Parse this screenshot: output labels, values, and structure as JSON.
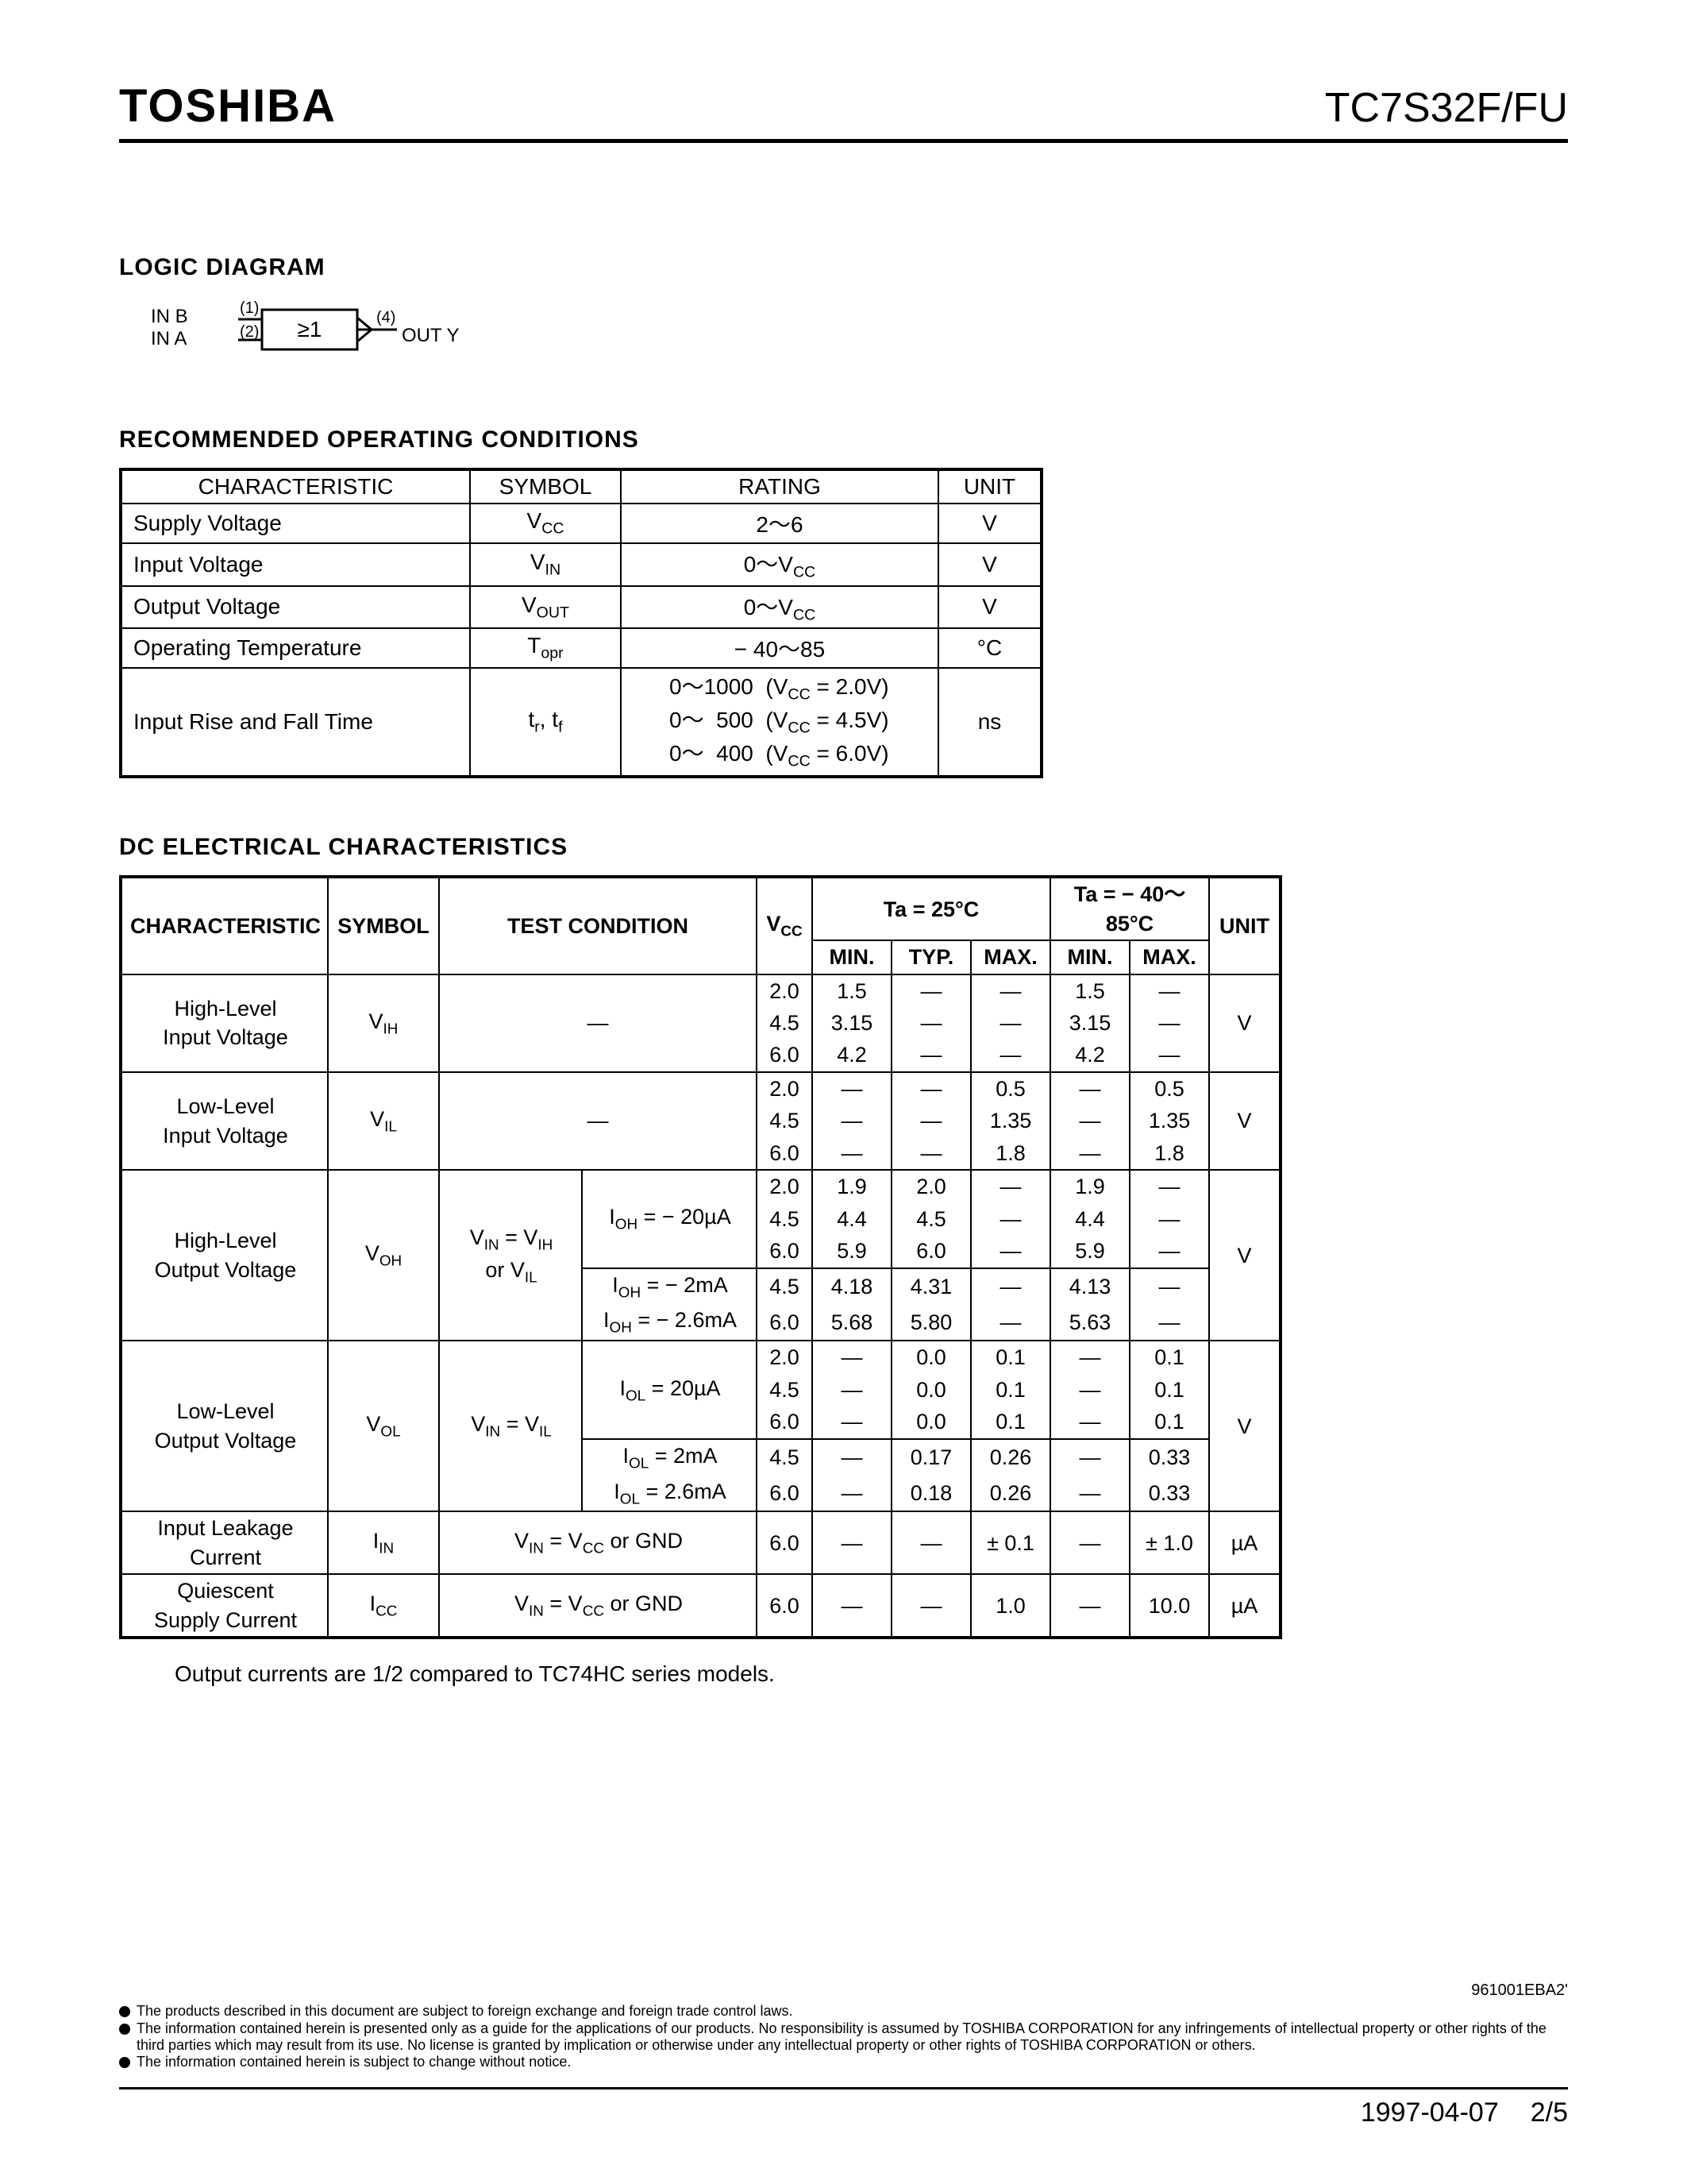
{
  "header": {
    "brand": "TOSHIBA",
    "part": "TC7S32F/FU"
  },
  "logic": {
    "title": "LOGIC  DIAGRAM",
    "in_b": "IN B",
    "in_a": "IN A",
    "pin1": "(1)",
    "pin2": "(2)",
    "pin4": "(4)",
    "gate": "≥1",
    "out": "OUT Y"
  },
  "roc": {
    "title": "RECOMMENDED  OPERATING  CONDITIONS",
    "head": {
      "char": "CHARACTERISTIC",
      "sym": "SYMBOL",
      "rat": "RATING",
      "unit": "UNIT"
    },
    "rows": [
      {
        "char": "Supply Voltage",
        "sym": "V<sub>CC</sub>",
        "rat": "2～6",
        "unit": "V"
      },
      {
        "char": "Input Voltage",
        "sym": "V<sub>IN</sub>",
        "rat": "0～V<sub>CC</sub>",
        "unit": "V"
      },
      {
        "char": "Output Voltage",
        "sym": "V<sub>OUT</sub>",
        "rat": "0～V<sub>CC</sub>",
        "unit": "V"
      },
      {
        "char": "Operating Temperature",
        "sym": "T<sub>opr</sub>",
        "rat": "− 40～85",
        "unit": "°C"
      }
    ],
    "rise_fall": {
      "char": "Input Rise and Fall Time",
      "sym": "t<sub>r</sub>, t<sub>f</sub>",
      "lines": [
        "0～1000&nbsp;&nbsp;(V<sub>CC</sub> = 2.0V)",
        "0～&nbsp;&nbsp;500&nbsp;&nbsp;(V<sub>CC</sub> = 4.5V)",
        "0～&nbsp;&nbsp;400&nbsp;&nbsp;(V<sub>CC</sub> = 6.0V)"
      ],
      "unit": "ns"
    }
  },
  "dc": {
    "title": "DC  ELECTRICAL  CHARACTERISTICS",
    "head": {
      "char": "CHARACTERISTIC",
      "sym": "SYMBOL",
      "tc": "TEST CONDITION",
      "ta25": "Ta = 25°C",
      "ta85": "Ta = − 40～85°C",
      "unit": "UNIT",
      "vcc": "V<sub>CC</sub>",
      "min": "MIN.",
      "typ": "TYP.",
      "max": "MAX."
    },
    "vih": {
      "char": "High-Level<br>Input Voltage",
      "sym": "V<sub>IH</sub>",
      "tc": "—",
      "unit": "V",
      "rows": [
        {
          "vcc": "2.0",
          "min": "1.5",
          "typ": "—",
          "max": "—",
          "min2": "1.5",
          "max2": "—"
        },
        {
          "vcc": "4.5",
          "min": "3.15",
          "typ": "—",
          "max": "—",
          "min2": "3.15",
          "max2": "—"
        },
        {
          "vcc": "6.0",
          "min": "4.2",
          "typ": "—",
          "max": "—",
          "min2": "4.2",
          "max2": "—"
        }
      ]
    },
    "vil": {
      "char": "Low-Level<br>Input Voltage",
      "sym": "V<sub>IL</sub>",
      "tc": "—",
      "unit": "V",
      "rows": [
        {
          "vcc": "2.0",
          "min": "—",
          "typ": "—",
          "max": "0.5",
          "min2": "—",
          "max2": "0.5"
        },
        {
          "vcc": "4.5",
          "min": "—",
          "typ": "—",
          "max": "1.35",
          "min2": "—",
          "max2": "1.35"
        },
        {
          "vcc": "6.0",
          "min": "—",
          "typ": "—",
          "max": "1.8",
          "min2": "—",
          "max2": "1.8"
        }
      ]
    },
    "voh": {
      "char": "High-Level<br>Output Voltage",
      "sym": "V<sub>OH</sub>",
      "tc_a": "V<sub>IN</sub> = V<sub>IH</sub><br>or V<sub>IL</sub>",
      "tc_b1": "I<sub>OH</sub> = − 20µA",
      "tc_b2": "I<sub>OH</sub> = − 2mA",
      "tc_b3": "I<sub>OH</sub> = − 2.6mA",
      "unit": "V",
      "rows1": [
        {
          "vcc": "2.0",
          "min": "1.9",
          "typ": "2.0",
          "max": "—",
          "min2": "1.9",
          "max2": "—"
        },
        {
          "vcc": "4.5",
          "min": "4.4",
          "typ": "4.5",
          "max": "—",
          "min2": "4.4",
          "max2": "—"
        },
        {
          "vcc": "6.0",
          "min": "5.9",
          "typ": "6.0",
          "max": "—",
          "min2": "5.9",
          "max2": "—"
        }
      ],
      "rows2": [
        {
          "vcc": "4.5",
          "min": "4.18",
          "typ": "4.31",
          "max": "—",
          "min2": "4.13",
          "max2": "—"
        },
        {
          "vcc": "6.0",
          "min": "5.68",
          "typ": "5.80",
          "max": "—",
          "min2": "5.63",
          "max2": "—"
        }
      ]
    },
    "vol": {
      "char": "Low-Level<br>Output Voltage",
      "sym": "V<sub>OL</sub>",
      "tc_a": "V<sub>IN</sub> = V<sub>IL</sub>",
      "tc_b1": "I<sub>OL</sub> = 20µA",
      "tc_b2": "I<sub>OL</sub> = 2mA",
      "tc_b3": "I<sub>OL</sub> = 2.6mA",
      "unit": "V",
      "rows1": [
        {
          "vcc": "2.0",
          "min": "—",
          "typ": "0.0",
          "max": "0.1",
          "min2": "—",
          "max2": "0.1"
        },
        {
          "vcc": "4.5",
          "min": "—",
          "typ": "0.0",
          "max": "0.1",
          "min2": "—",
          "max2": "0.1"
        },
        {
          "vcc": "6.0",
          "min": "—",
          "typ": "0.0",
          "max": "0.1",
          "min2": "—",
          "max2": "0.1"
        }
      ],
      "rows2": [
        {
          "vcc": "4.5",
          "min": "—",
          "typ": "0.17",
          "max": "0.26",
          "min2": "—",
          "max2": "0.33"
        },
        {
          "vcc": "6.0",
          "min": "—",
          "typ": "0.18",
          "max": "0.26",
          "min2": "—",
          "max2": "0.33"
        }
      ]
    },
    "iin": {
      "char": "Input Leakage<br>Current",
      "sym": "I<sub>IN</sub>",
      "tc": "V<sub>IN</sub> = V<sub>CC</sub>  or  GND",
      "unit": "µA",
      "row": {
        "vcc": "6.0",
        "min": "—",
        "typ": "—",
        "max": "± 0.1",
        "min2": "—",
        "max2": "± 1.0"
      }
    },
    "icc": {
      "char": "Quiescent<br>Supply Current",
      "sym": "I<sub>CC</sub>",
      "tc": "V<sub>IN</sub> = V<sub>CC</sub>  or  GND",
      "unit": "µA",
      "row": {
        "vcc": "6.0",
        "min": "—",
        "typ": "—",
        "max": "1.0",
        "min2": "—",
        "max2": "10.0"
      }
    }
  },
  "note": "Output currents are 1/2 compared to TC74HC series models.",
  "footer": {
    "code": "961001EBA2'",
    "legal": [
      "The products described in this document are subject to foreign exchange and foreign trade control laws.",
      "The information contained herein is presented only as a guide for the applications of our products. No responsibility is assumed by TOSHIBA CORPORATION for any infringements of intellectual property or other rights of the third parties which may result from its use. No license is granted by implication or otherwise under any intellectual property or other rights of TOSHIBA CORPORATION or others.",
      "The information contained herein is subject to change without notice."
    ],
    "date": "1997-04-07",
    "page": "2/5"
  }
}
